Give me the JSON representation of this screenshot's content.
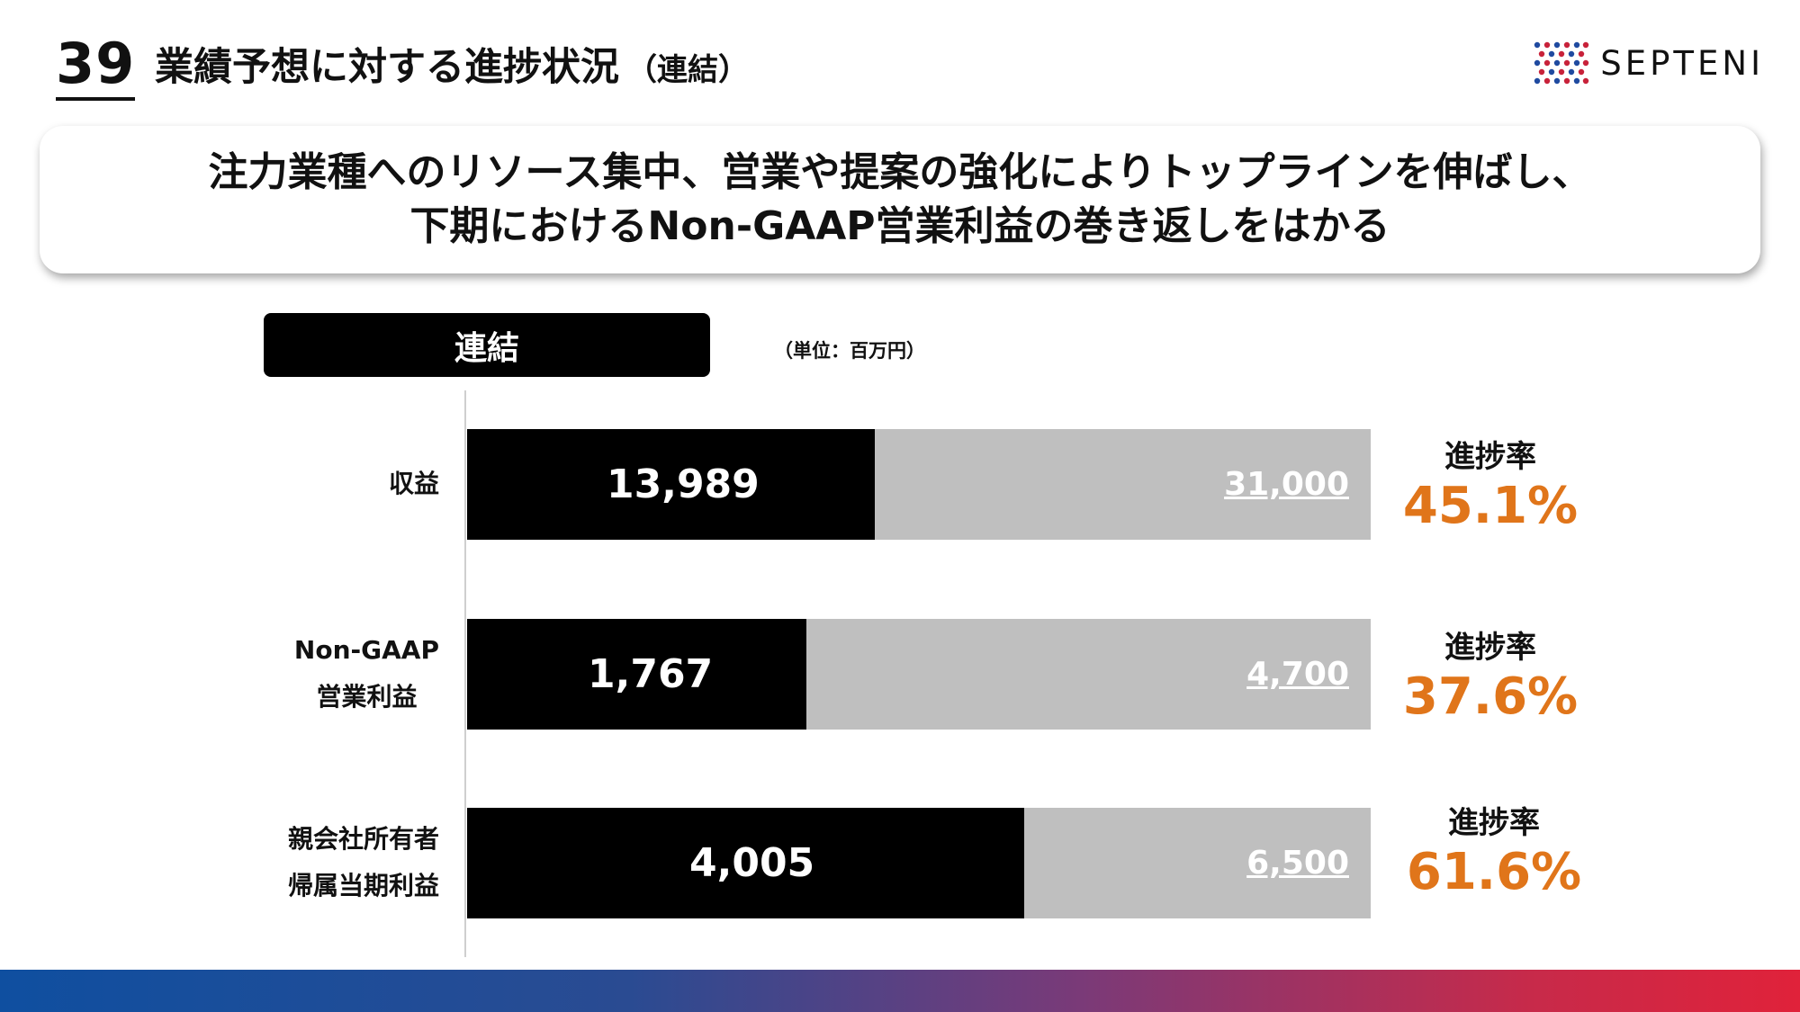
{
  "header": {
    "page_number": "39",
    "title": "業績予想に対する進捗状況",
    "title_sub": "（連結）",
    "logo_text": "SEPTENI"
  },
  "banner": {
    "line1": "注力業種へのリソース集中、営業や提案の強化によりトップラインを伸ばし、",
    "line2": "下期におけるNon-GAAP営業利益の巻き返しをはかる"
  },
  "section_label": "連結",
  "unit_label": "（単位：百万円）",
  "colors": {
    "actual": "#000000",
    "target": "#bfbfbf",
    "rate": "#e0751a"
  },
  "chart_data": {
    "type": "bar",
    "orientation": "horizontal",
    "stacked": "progress-vs-target",
    "categories": [
      "収益",
      "Non-GAAP 営業利益",
      "親会社所有者 帰属当期利益"
    ],
    "category_lines": [
      [
        "収益"
      ],
      [
        "Non-GAAP",
        "営業利益"
      ],
      [
        "親会社所有者",
        "帰属当期利益"
      ]
    ],
    "series": [
      {
        "values": [
          13989,
          1767,
          4005
        ],
        "labels": [
          "13,989",
          "1,767",
          "4,005"
        ]
      },
      {
        "values": [
          31000,
          4700,
          6500
        ],
        "labels": [
          "31,000",
          "4,700",
          "6,500"
        ]
      }
    ],
    "rate_label": "進捗率",
    "rates": [
      "45.1%",
      "37.6%",
      "61.6%"
    ],
    "rate_values": [
      45.1,
      37.6,
      61.6
    ]
  }
}
